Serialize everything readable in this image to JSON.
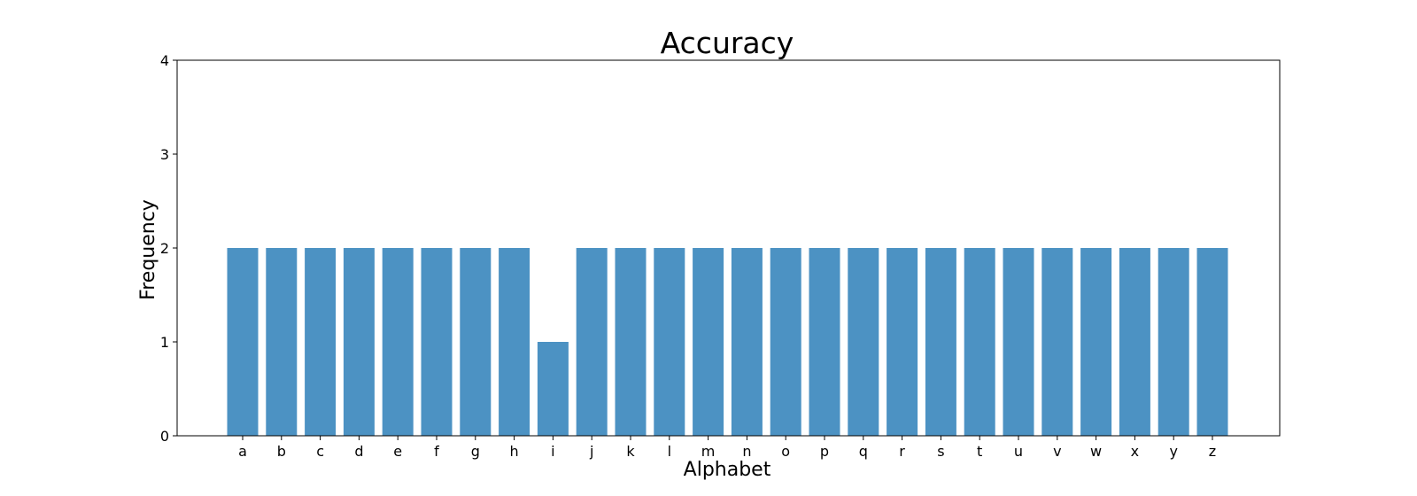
{
  "chart_data": {
    "type": "bar",
    "title": "Accuracy",
    "xlabel": "Alphabet",
    "ylabel": "Frequency",
    "categories": [
      "a",
      "b",
      "c",
      "d",
      "e",
      "f",
      "g",
      "h",
      "i",
      "j",
      "k",
      "l",
      "m",
      "n",
      "o",
      "p",
      "q",
      "r",
      "s",
      "t",
      "u",
      "v",
      "w",
      "x",
      "y",
      "z"
    ],
    "values": [
      2,
      2,
      2,
      2,
      2,
      2,
      2,
      2,
      1,
      2,
      2,
      2,
      2,
      2,
      2,
      2,
      2,
      2,
      2,
      2,
      2,
      2,
      2,
      2,
      2,
      2
    ],
    "ylim": [
      0,
      4
    ],
    "yticks": [
      0,
      1,
      2,
      3,
      4
    ],
    "grid": false,
    "bar_color": "#4c92c3"
  }
}
